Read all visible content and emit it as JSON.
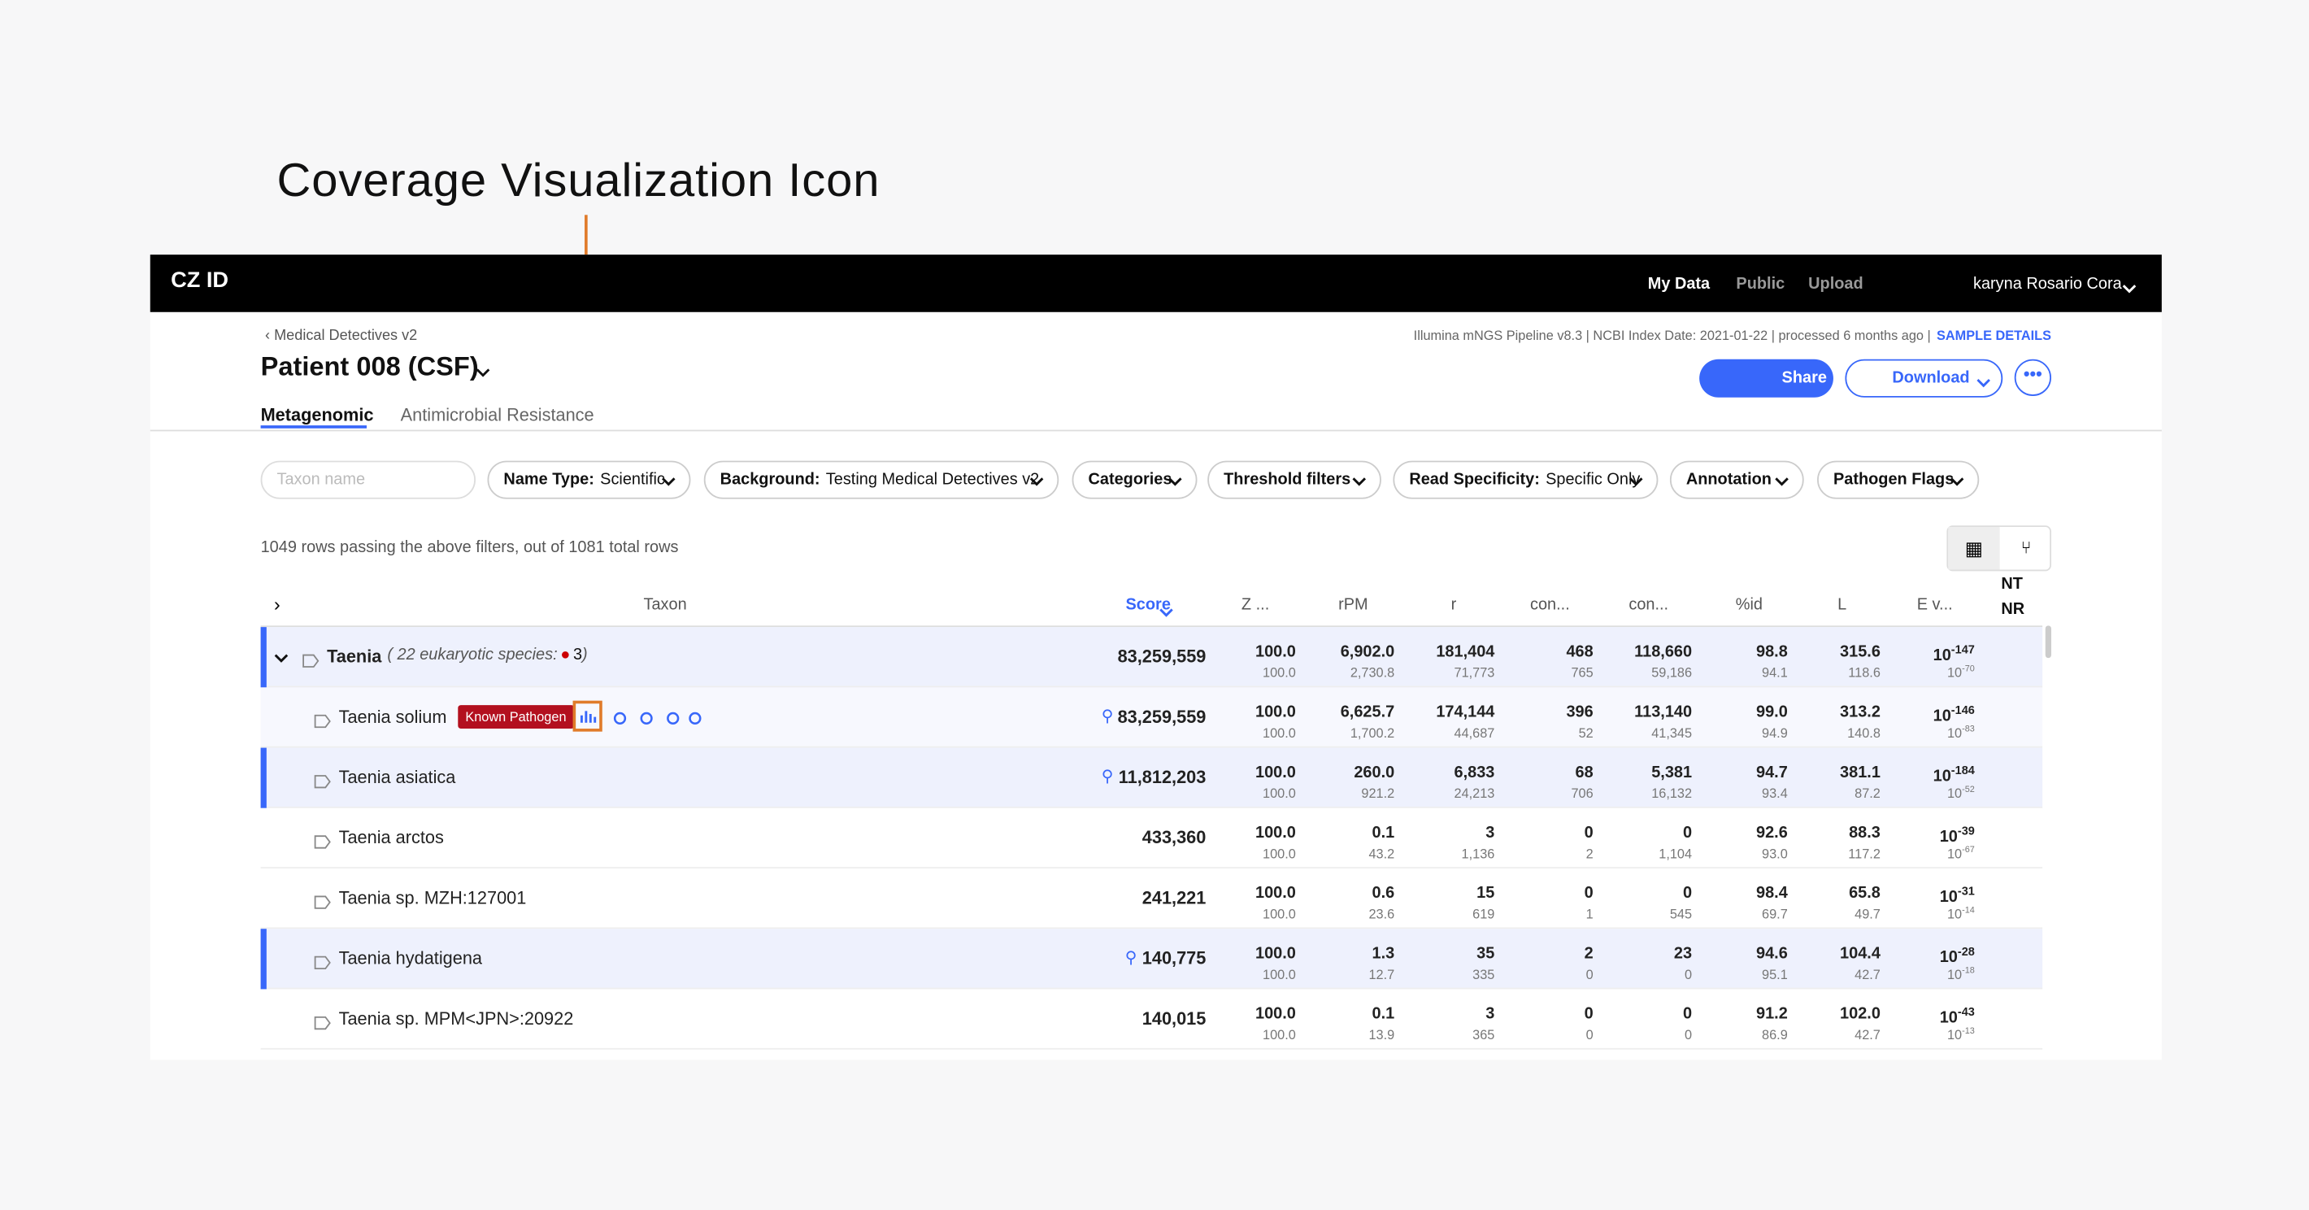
{
  "annotation": {
    "title": "Coverage Visualization Icon"
  },
  "nav": {
    "logo": "CZ ID",
    "links": [
      "My Data",
      "Public",
      "Upload"
    ],
    "user": "karyna Rosario Cora"
  },
  "header": {
    "breadcrumb": "Medical Detectives v2",
    "title": "Patient 008 (CSF)",
    "meta": "Illumina mNGS Pipeline v8.3 | NCBI Index Date: 2021-01-22 | processed 6 months ago |",
    "details_link": "SAMPLE DETAILS",
    "share": "Share",
    "download": "Download"
  },
  "tabs": [
    "Metagenomic",
    "Antimicrobial Resistance"
  ],
  "filters": {
    "search_placeholder": "Taxon name",
    "items": [
      {
        "label": "Name Type:",
        "value": "Scientific"
      },
      {
        "label": "Background:",
        "value": "Testing Medical Detectives v2"
      },
      {
        "label": "Categories"
      },
      {
        "label": "Threshold filters"
      },
      {
        "label": "Read Specificity:",
        "value": "Specific Only"
      },
      {
        "label": "Annotation"
      },
      {
        "label": "Pathogen Flags"
      }
    ]
  },
  "row_count": "1049 rows passing the above filters, out of 1081 total rows",
  "table": {
    "columns": [
      "Taxon",
      "Score",
      "Z ...",
      "rPM",
      "r",
      "con...",
      "con...",
      "%id",
      "L",
      "E v..."
    ],
    "nt": "NT",
    "nr": "NR",
    "e_base": "10",
    "rows": [
      {
        "name": "Taenia",
        "note_prefix": "( 22 eukaryotic species:",
        "note_count": "3",
        "note_suffix": ")",
        "score": "83,259,559",
        "z": [
          "100.0",
          "100.0"
        ],
        "rpm": [
          "6,902.0",
          "2,730.8"
        ],
        "r": [
          "181,404",
          "71,773"
        ],
        "con": [
          "468",
          "765"
        ],
        "con2": [
          "118,660",
          "59,186"
        ],
        "pid": [
          "98.8",
          "94.1"
        ],
        "l": [
          "315.6",
          "118.6"
        ],
        "e": [
          "-147",
          "-70"
        ]
      },
      {
        "name": "Taenia solium",
        "tag": "Known Pathogen",
        "score": "83,259,559",
        "z": [
          "100.0",
          "100.0"
        ],
        "rpm": [
          "6,625.7",
          "1,700.2"
        ],
        "r": [
          "174,144",
          "44,687"
        ],
        "con": [
          "396",
          "52"
        ],
        "con2": [
          "113,140",
          "41,345"
        ],
        "pid": [
          "99.0",
          "94.9"
        ],
        "l": [
          "313.2",
          "140.8"
        ],
        "e": [
          "-146",
          "-83"
        ]
      },
      {
        "name": "Taenia asiatica",
        "score": "11,812,203",
        "z": [
          "100.0",
          "100.0"
        ],
        "rpm": [
          "260.0",
          "921.2"
        ],
        "r": [
          "6,833",
          "24,213"
        ],
        "con": [
          "68",
          "706"
        ],
        "con2": [
          "5,381",
          "16,132"
        ],
        "pid": [
          "94.7",
          "93.4"
        ],
        "l": [
          "381.1",
          "87.2"
        ],
        "e": [
          "-184",
          "-52"
        ]
      },
      {
        "name": "Taenia arctos",
        "score": "433,360",
        "z": [
          "100.0",
          "100.0"
        ],
        "rpm": [
          "0.1",
          "43.2"
        ],
        "r": [
          "3",
          "1,136"
        ],
        "con": [
          "0",
          "2"
        ],
        "con2": [
          "0",
          "1,104"
        ],
        "pid": [
          "92.6",
          "93.0"
        ],
        "l": [
          "88.3",
          "117.2"
        ],
        "e": [
          "-39",
          "-67"
        ]
      },
      {
        "name": "Taenia sp. MZH:127001",
        "score": "241,221",
        "z": [
          "100.0",
          "100.0"
        ],
        "rpm": [
          "0.6",
          "23.6"
        ],
        "r": [
          "15",
          "619"
        ],
        "con": [
          "0",
          "1"
        ],
        "con2": [
          "0",
          "545"
        ],
        "pid": [
          "98.4",
          "69.7"
        ],
        "l": [
          "65.8",
          "49.7"
        ],
        "e": [
          "-31",
          "-14"
        ]
      },
      {
        "name": "Taenia hydatigena",
        "score": "140,775",
        "z": [
          "100.0",
          "100.0"
        ],
        "rpm": [
          "1.3",
          "12.7"
        ],
        "r": [
          "35",
          "335"
        ],
        "con": [
          "2",
          "0"
        ],
        "con2": [
          "23",
          "0"
        ],
        "pid": [
          "94.6",
          "95.1"
        ],
        "l": [
          "104.4",
          "42.7"
        ],
        "e": [
          "-28",
          "-18"
        ]
      },
      {
        "name": "Taenia sp. MPM<JPN>:20922",
        "score": "140,015",
        "z": [
          "100.0",
          "100.0"
        ],
        "rpm": [
          "0.1",
          "13.9"
        ],
        "r": [
          "3",
          "365"
        ],
        "con": [
          "0",
          "0"
        ],
        "con2": [
          "0",
          "0"
        ],
        "pid": [
          "91.2",
          "86.9"
        ],
        "l": [
          "102.0",
          "42.7"
        ],
        "e": [
          "-43",
          "-13"
        ]
      }
    ]
  }
}
